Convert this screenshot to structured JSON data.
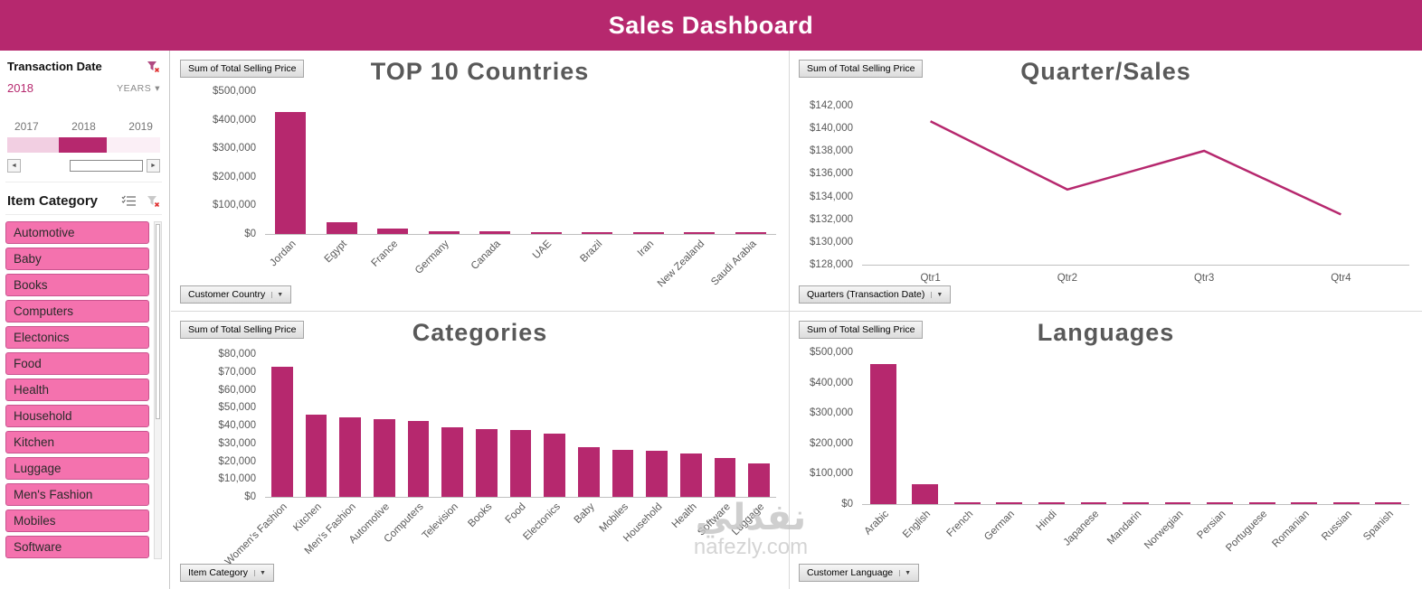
{
  "header": {
    "title": "Sales Dashboard"
  },
  "watermark": {
    "arabic": "نفذلي",
    "site": "nafezly.com"
  },
  "icons": {
    "dropdown": "▼",
    "chevron_down": "▾",
    "scroll_left": "◄",
    "scroll_right": "►"
  },
  "colors": {
    "accent": "#B6286E",
    "slicer_fill": "#F472AE",
    "slicer_border": "#C9548F",
    "title_gray": "#595959"
  },
  "sidebar": {
    "timeline": {
      "title": "Transaction Date",
      "selection_label": "2018",
      "period_label": "YEARS",
      "years": [
        "2017",
        "2018",
        "2019"
      ],
      "selected_year": "2018"
    },
    "category_slicer": {
      "title": "Item Category",
      "items": [
        "Automotive",
        "Baby",
        "Books",
        "Computers",
        "Electonics",
        "Food",
        "Health",
        "Household",
        "Kitchen",
        "Luggage",
        "Men's Fashion",
        "Mobiles",
        "Software"
      ]
    }
  },
  "chart_data": [
    {
      "type": "bar",
      "title": "TOP 10 Countries",
      "value_field_button": "Sum of Total Selling Price",
      "axis_field_button": "Customer Country",
      "categories": [
        "Jordan",
        "Egypt",
        "France",
        "Germany",
        "Canada",
        "UAE",
        "Brazil",
        "Iran",
        "New Zealand",
        "Saudi Arabia"
      ],
      "values": [
        428000,
        41000,
        19000,
        10000,
        9000,
        5000,
        3500,
        3000,
        2500,
        2000
      ],
      "ylim": [
        0,
        500000
      ],
      "ytick_step": 100000,
      "x_tick_rotation": -45,
      "legend": "none",
      "grid": "off"
    },
    {
      "type": "line",
      "title": "Quarter/Sales",
      "value_field_button": "Sum of Total Selling Price",
      "axis_field_button": "Quarters (Transaction Date)",
      "categories": [
        "Qtr1",
        "Qtr2",
        "Qtr3",
        "Qtr4"
      ],
      "values": [
        140700,
        134700,
        138100,
        132500
      ],
      "ylim": [
        128000,
        142000
      ],
      "ytick_step": 2000,
      "x_tick_rotation": 0,
      "legend": "none",
      "grid": "off"
    },
    {
      "type": "bar",
      "title": "Categories",
      "value_field_button": "Sum of Total Selling Price",
      "axis_field_button": "Item Category",
      "categories": [
        "Women's Fashion",
        "Kitchen",
        "Men's Fashion",
        "Automotive",
        "Computers",
        "Television",
        "Books",
        "Food",
        "Electonics",
        "Baby",
        "Mobiles",
        "Household",
        "Health",
        "Software",
        "Luggage"
      ],
      "values": [
        73000,
        46000,
        44500,
        43500,
        42500,
        39000,
        38000,
        37500,
        35500,
        28000,
        26500,
        26000,
        24500,
        22000,
        18500
      ],
      "ylim": [
        0,
        80000
      ],
      "ytick_step": 10000,
      "x_tick_rotation": -45,
      "legend": "none",
      "grid": "off"
    },
    {
      "type": "bar",
      "title": "Languages",
      "value_field_button": "Sum of Total Selling Price",
      "axis_field_button": "Customer Language",
      "categories": [
        "Arabic",
        "English",
        "French",
        "German",
        "Hindi",
        "Japanese",
        "Mandarin",
        "Norwegian",
        "Persian",
        "Portuguese",
        "Romanian",
        "Russian",
        "Spanish"
      ],
      "values": [
        460000,
        65000,
        4000,
        3500,
        3000,
        3500,
        3000,
        2500,
        3500,
        3000,
        2500,
        3000,
        3500
      ],
      "ylim": [
        0,
        500000
      ],
      "ytick_step": 100000,
      "x_tick_rotation": -45,
      "legend": "none",
      "grid": "off"
    }
  ]
}
